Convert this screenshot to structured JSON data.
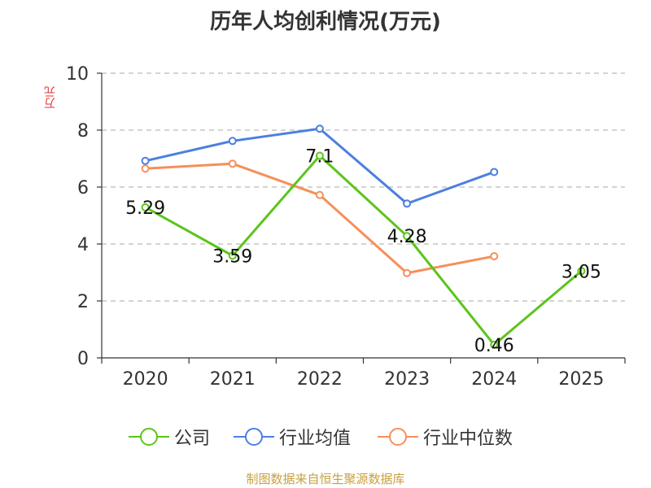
{
  "title": "历年人均创利情况(万元)",
  "source": "制图数据来自恒生聚源数据库",
  "chart_data": {
    "type": "line",
    "title": "历年人均创利情况(万元)",
    "ylabel": "万元",
    "xlabel": "",
    "ylim": [
      0,
      10
    ],
    "yticks": [
      "0",
      "2",
      "4",
      "6",
      "8",
      "10"
    ],
    "categories": [
      "2020",
      "2021",
      "2022",
      "2023",
      "2024",
      "2025"
    ],
    "grid": "horizontal dashed",
    "legend_position": "bottom",
    "series": [
      {
        "name": "公司",
        "color": "#5cc41c",
        "values": [
          5.29,
          3.59,
          7.1,
          4.28,
          0.46,
          3.05
        ],
        "labels": [
          "5.29",
          "3.59",
          "7.1",
          "4.28",
          "0.46",
          "3.05"
        ]
      },
      {
        "name": "行业均值",
        "color": "#4d7fe0",
        "values": [
          6.92,
          7.62,
          8.05,
          5.42,
          6.53,
          null
        ]
      },
      {
        "name": "行业中位数",
        "color": "#f5905a",
        "values": [
          6.65,
          6.82,
          5.72,
          2.98,
          3.57,
          null
        ]
      }
    ]
  }
}
